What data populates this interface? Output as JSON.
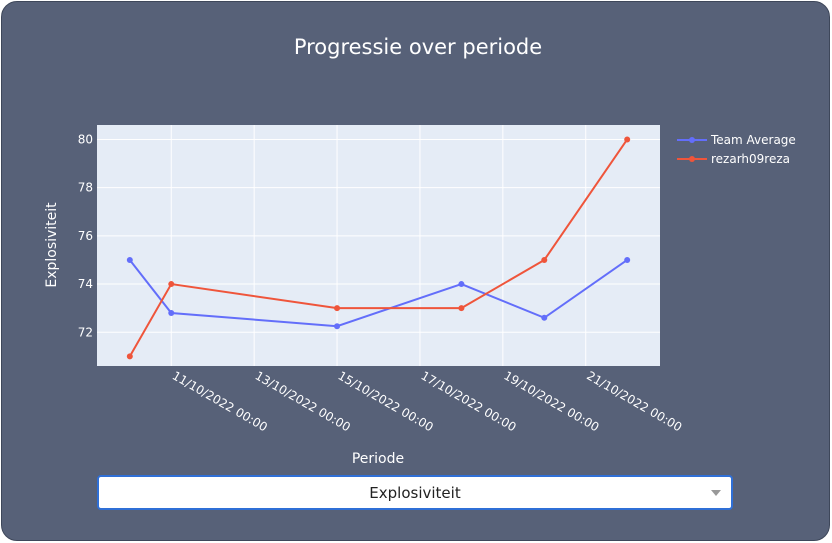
{
  "chart_data": {
    "type": "line",
    "title": "Progressie over periode",
    "xlabel": "Periode",
    "ylabel": "Explosiviteit",
    "x_tick_labels": [
      "11/10/2022 00:00",
      "13/10/2022 00:00",
      "15/10/2022 00:00",
      "17/10/2022 00:00",
      "19/10/2022 00:00",
      "21/10/2022 00:00"
    ],
    "y_ticks": [
      72,
      74,
      76,
      78,
      80
    ],
    "ylim": [
      70.6,
      80.6
    ],
    "legend_position": "top-right",
    "grid": true,
    "x_dates": [
      "2022-10-10",
      "2022-10-11",
      "2022-10-15",
      "2022-10-18",
      "2022-10-20",
      "2022-10-22"
    ],
    "series": [
      {
        "name": "Team Average",
        "color": "#636efa",
        "values": [
          75,
          72.8,
          72.25,
          74,
          72.6,
          75
        ]
      },
      {
        "name": "rezarh09reza",
        "color": "#ef553b",
        "values": [
          71,
          74,
          73,
          73,
          75,
          80
        ]
      }
    ]
  },
  "dropdown": {
    "selected": "Explosiviteit"
  },
  "colors": {
    "card_bg": "#576178",
    "plot_bg": "#e5ecf6"
  }
}
